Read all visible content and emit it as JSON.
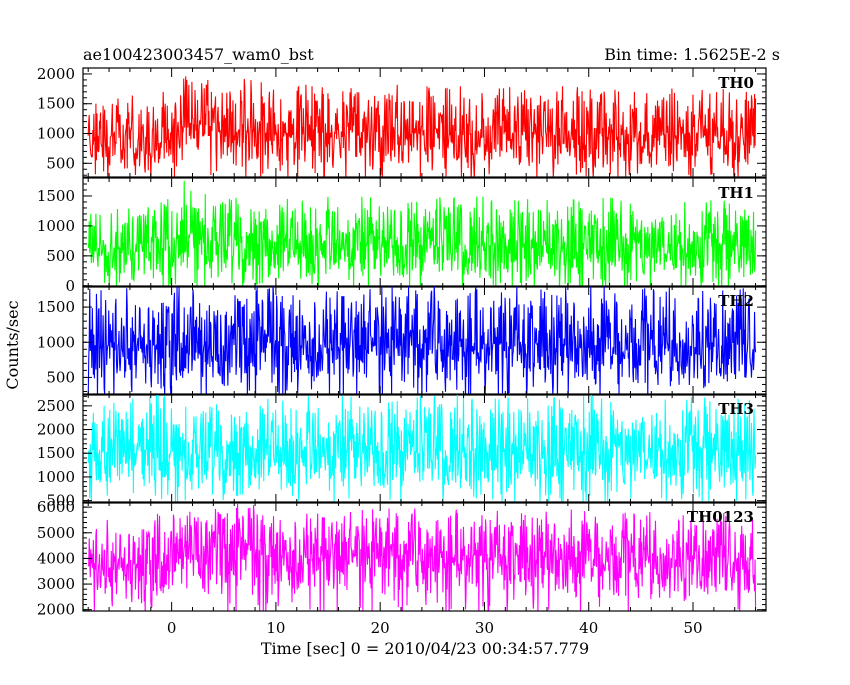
{
  "chart_data": {
    "type": "line",
    "title": "ae100423003457_wam0_bst",
    "subtitle": "Bin time: 1.5625E-2 s",
    "xlabel": "Time [sec] 0 = 2010/04/23 00:34:57.779",
    "ylabel": "Counts/sec",
    "xlim": [
      -8.5,
      57
    ],
    "x_ticks": [
      0,
      10,
      20,
      30,
      40,
      50
    ],
    "x_tick_labels": [
      "0",
      "10",
      "20",
      "30",
      "40",
      "50"
    ],
    "x_start": -8,
    "x_end": 56,
    "panels": [
      {
        "name": "TH0",
        "color": "#ff0000",
        "ylim": [
          270,
          2100
        ],
        "y_ticks": [
          500,
          1000,
          1500,
          2000
        ],
        "y_tick_labels": [
          "500",
          "1000",
          "1500",
          "2000"
        ],
        "lows": [
          [
            -8,
            350
          ],
          [
            0,
            300
          ],
          [
            1.2,
            650
          ],
          [
            2,
            800
          ],
          [
            4,
            350
          ],
          [
            56,
            350
          ]
        ],
        "highs": [
          [
            -8,
            1450
          ],
          [
            0,
            1550
          ],
          [
            1.5,
            1900
          ],
          [
            4,
            1850
          ],
          [
            10,
            1700
          ],
          [
            30,
            1650
          ],
          [
            56,
            1600
          ]
        ],
        "means": [
          [
            -8,
            850
          ],
          [
            0,
            880
          ],
          [
            1.5,
            1200
          ],
          [
            4,
            1100
          ],
          [
            10,
            1000
          ],
          [
            56,
            950
          ]
        ]
      },
      {
        "name": "TH1",
        "color": "#00ff00",
        "ylim": [
          -20,
          1800
        ],
        "y_ticks": [
          0,
          500,
          1000,
          1500
        ],
        "y_tick_labels": [
          "0",
          "500",
          "1000",
          "1500"
        ],
        "lows": [
          [
            -8,
            80
          ],
          [
            0,
            60
          ],
          [
            1.2,
            380
          ],
          [
            2,
            200
          ],
          [
            4,
            60
          ],
          [
            56,
            60
          ]
        ],
        "highs": [
          [
            -8,
            1200
          ],
          [
            0,
            1300
          ],
          [
            1.5,
            1650
          ],
          [
            4,
            1500
          ],
          [
            10,
            1350
          ],
          [
            56,
            1300
          ]
        ],
        "means": [
          [
            -8,
            600
          ],
          [
            0,
            650
          ],
          [
            1.5,
            900
          ],
          [
            4,
            800
          ],
          [
            10,
            700
          ],
          [
            56,
            650
          ]
        ]
      },
      {
        "name": "TH2",
        "color": "#0000ff",
        "ylim": [
          250,
          1800
        ],
        "y_ticks": [
          500,
          1000,
          1500
        ],
        "y_tick_labels": [
          "500",
          "1000",
          "1500"
        ],
        "lows": [
          [
            -8,
            300
          ],
          [
            56,
            300
          ]
        ],
        "highs": [
          [
            -8,
            1650
          ],
          [
            56,
            1650
          ]
        ],
        "means": [
          [
            -8,
            950
          ],
          [
            56,
            950
          ]
        ]
      },
      {
        "name": "TH3",
        "color": "#00ffff",
        "ylim": [
          450,
          2750
        ],
        "y_ticks": [
          500,
          1000,
          1500,
          2000,
          2500
        ],
        "y_tick_labels": [
          "500",
          "1000",
          "1500",
          "2000",
          "2500"
        ],
        "lows": [
          [
            -8,
            650
          ],
          [
            56,
            650
          ]
        ],
        "highs": [
          [
            -8,
            2500
          ],
          [
            56,
            2500
          ]
        ],
        "means": [
          [
            -8,
            1550
          ],
          [
            56,
            1550
          ]
        ]
      },
      {
        "name": "TH0123",
        "color": "#ff00ff",
        "ylim": [
          1950,
          6200
        ],
        "y_ticks": [
          2000,
          3000,
          4000,
          5000,
          6000
        ],
        "y_tick_labels": [
          "2000",
          "3000",
          "4000",
          "5000",
          "6000"
        ],
        "lows": [
          [
            -8,
            2150
          ],
          [
            0,
            2150
          ],
          [
            1.2,
            3300
          ],
          [
            2,
            2800
          ],
          [
            4,
            2200
          ],
          [
            56,
            2200
          ]
        ],
        "highs": [
          [
            -8,
            5200
          ],
          [
            0,
            5400
          ],
          [
            1.5,
            6100
          ],
          [
            4,
            5900
          ],
          [
            10,
            5600
          ],
          [
            56,
            5500
          ]
        ],
        "means": [
          [
            -8,
            3700
          ],
          [
            0,
            3800
          ],
          [
            1.5,
            4600
          ],
          [
            4,
            4400
          ],
          [
            10,
            4100
          ],
          [
            56,
            4000
          ]
        ]
      }
    ]
  }
}
